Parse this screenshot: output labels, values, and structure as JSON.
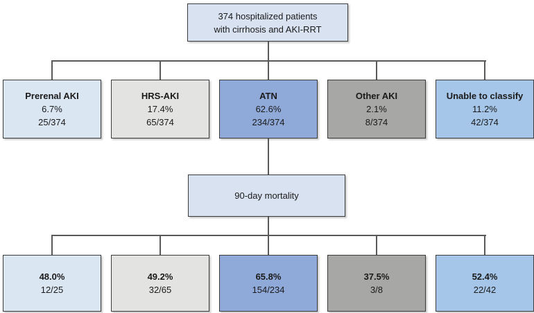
{
  "root_box": {
    "line1": "374 hospitalized patients",
    "line2": "with cirrhosis and AKI-RRT"
  },
  "mortality_box": {
    "label": "90-day mortality"
  },
  "categories": [
    {
      "name": "Prerenal AKI",
      "percent": "6.7%",
      "fraction": "25/374",
      "mortality_percent": "48.0%",
      "mortality_fraction": "12/25",
      "color": "#dbe6f3"
    },
    {
      "name": "HRS-AKI",
      "percent": "17.4%",
      "fraction": "65/374",
      "mortality_percent": "49.2%",
      "mortality_fraction": "32/65",
      "color": "#e3e3e1"
    },
    {
      "name": "ATN",
      "percent": "62.6%",
      "fraction": "234/374",
      "mortality_percent": "65.8%",
      "mortality_fraction": "154/234",
      "color": "#8fa9d9"
    },
    {
      "name": "Other AKI",
      "percent": "2.1%",
      "fraction": "8/374",
      "mortality_percent": "37.5%",
      "mortality_fraction": "3/8",
      "color": "#a7a7a5"
    },
    {
      "name": "Unable to classify",
      "percent": "11.2%",
      "fraction": "42/374",
      "mortality_percent": "52.4%",
      "mortality_fraction": "22/42",
      "color": "#a5c6e8"
    }
  ],
  "colors": {
    "root_box_bg": "#d9e2f1",
    "mortality_box_bg": "#d9e2f1",
    "border": "#3b3b3b",
    "connector_line": "#595959"
  }
}
